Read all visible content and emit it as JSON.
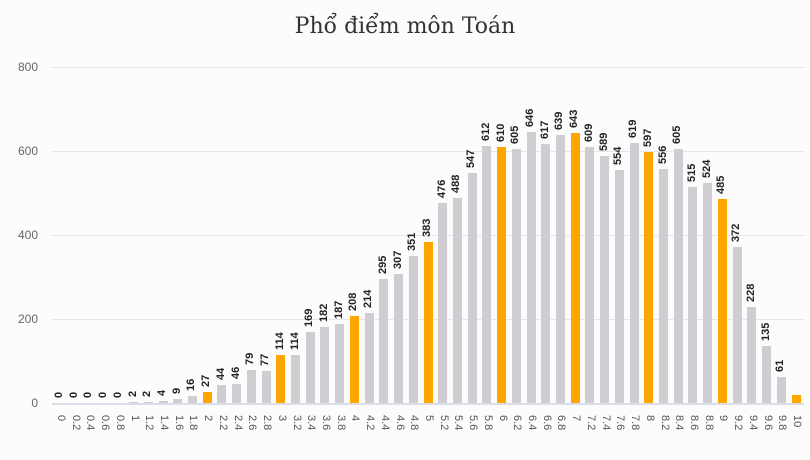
{
  "chart_data": {
    "type": "bar",
    "title": "Phổ điểm môn Toán",
    "xlabel": "",
    "ylabel": "",
    "ylim": [
      0,
      800
    ],
    "yticks": [
      0,
      200,
      400,
      600,
      800
    ],
    "grid": true,
    "legend": null,
    "colors": {
      "default": "#cfcdd2",
      "highlight": "#ffa500"
    },
    "categories": [
      "0",
      "0.2",
      "0.4",
      "0.6",
      "0.8",
      "1",
      "1.2",
      "1.4",
      "1.6",
      "1.8",
      "2",
      "2.2",
      "2.4",
      "2.6",
      "2.8",
      "3",
      "3.2",
      "3.4",
      "3.6",
      "3.8",
      "4",
      "4.2",
      "4.4",
      "4.6",
      "4.8",
      "5",
      "5.2",
      "5.4",
      "5.6",
      "5.8",
      "6",
      "6.2",
      "6.4",
      "6.6",
      "6.8",
      "7",
      "7.2",
      "7.4",
      "7.6",
      "7.8",
      "8",
      "8.2",
      "8.4",
      "8.6",
      "8.8",
      "9",
      "9.2",
      "9.4",
      "9.6",
      "9.8",
      "10"
    ],
    "values": [
      0,
      0,
      0,
      0,
      0,
      2,
      2,
      4,
      9,
      16,
      27,
      44,
      46,
      79,
      77,
      114,
      114,
      169,
      182,
      187,
      208,
      214,
      295,
      307,
      351,
      383,
      476,
      488,
      547,
      612,
      610,
      605,
      646,
      617,
      639,
      643,
      609,
      589,
      554,
      619,
      597,
      556,
      605,
      515,
      524,
      485,
      372,
      228,
      135,
      61,
      18
    ],
    "labels_shown": [
      true,
      true,
      true,
      true,
      true,
      true,
      true,
      true,
      true,
      true,
      true,
      true,
      true,
      true,
      true,
      true,
      true,
      true,
      true,
      true,
      true,
      true,
      true,
      true,
      true,
      true,
      true,
      true,
      true,
      true,
      true,
      true,
      true,
      true,
      true,
      true,
      true,
      true,
      true,
      true,
      true,
      true,
      true,
      true,
      true,
      true,
      true,
      true,
      true,
      true,
      false
    ],
    "highlighted": [
      "2",
      "3",
      "4",
      "5",
      "6",
      "7",
      "8",
      "9",
      "10"
    ]
  }
}
